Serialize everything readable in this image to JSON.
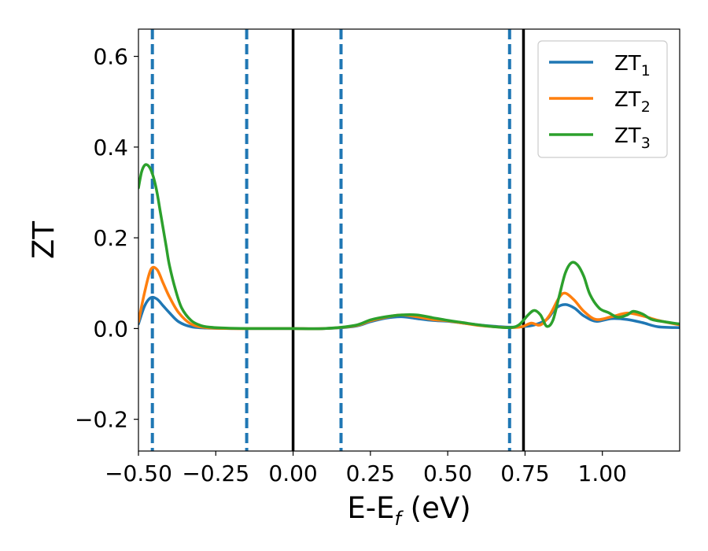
{
  "chart_data": {
    "type": "line",
    "title": "",
    "xlabel": {
      "main": "E-E",
      "sub": "f",
      "unit": " (eV)"
    },
    "ylabel": "ZT",
    "xlim": [
      -0.5,
      1.25
    ],
    "ylim": [
      -0.27,
      0.66
    ],
    "x_ticks": [
      -0.5,
      -0.25,
      0.0,
      0.25,
      0.5,
      0.75,
      1.0
    ],
    "x_tick_labels": [
      "−0.50",
      "−0.25",
      "0.00",
      "0.25",
      "0.50",
      "0.75",
      "1.00"
    ],
    "y_ticks": [
      -0.2,
      0.0,
      0.2,
      0.4,
      0.6
    ],
    "y_tick_labels": [
      "−0.2",
      "0.0",
      "0.2",
      "0.4",
      "0.6"
    ],
    "grid": false,
    "legend_position": "top-right",
    "vlines": [
      {
        "x": -0.455,
        "style": "dashed",
        "color": "#1f77b4"
      },
      {
        "x": -0.15,
        "style": "dashed",
        "color": "#1f77b4"
      },
      {
        "x": 0.0,
        "style": "solid",
        "color": "#000000"
      },
      {
        "x": 0.155,
        "style": "dashed",
        "color": "#1f77b4"
      },
      {
        "x": 0.7,
        "style": "dashed",
        "color": "#1f77b4"
      },
      {
        "x": 0.745,
        "style": "solid",
        "color": "#000000"
      }
    ],
    "series": [
      {
        "name": "ZT",
        "sub": "1",
        "color": "#1f77b4",
        "x": [
          -0.5,
          -0.48,
          -0.46,
          -0.44,
          -0.42,
          -0.4,
          -0.37,
          -0.33,
          -0.28,
          -0.2,
          -0.1,
          0.0,
          0.1,
          0.2,
          0.25,
          0.3,
          0.35,
          0.4,
          0.45,
          0.5,
          0.55,
          0.6,
          0.65,
          0.7,
          0.74,
          0.78,
          0.82,
          0.85,
          0.88,
          0.91,
          0.94,
          0.98,
          1.03,
          1.08,
          1.13,
          1.18,
          1.25
        ],
        "y": [
          0.01,
          0.05,
          0.068,
          0.065,
          0.05,
          0.035,
          0.015,
          0.004,
          0.001,
          0.0,
          0.0,
          0.0,
          0.0,
          0.005,
          0.015,
          0.023,
          0.026,
          0.022,
          0.018,
          0.016,
          0.012,
          0.008,
          0.005,
          0.003,
          0.004,
          0.008,
          0.02,
          0.045,
          0.053,
          0.045,
          0.028,
          0.016,
          0.022,
          0.02,
          0.013,
          0.004,
          0.002
        ]
      },
      {
        "name": "ZT",
        "sub": "2",
        "color": "#ff7f0e",
        "x": [
          -0.5,
          -0.48,
          -0.46,
          -0.44,
          -0.42,
          -0.4,
          -0.37,
          -0.33,
          -0.28,
          -0.2,
          -0.1,
          0.0,
          0.1,
          0.2,
          0.25,
          0.3,
          0.35,
          0.4,
          0.45,
          0.5,
          0.55,
          0.6,
          0.65,
          0.7,
          0.74,
          0.77,
          0.8,
          0.83,
          0.86,
          0.88,
          0.91,
          0.94,
          0.98,
          1.03,
          1.08,
          1.13,
          1.18,
          1.25
        ],
        "y": [
          0.015,
          0.08,
          0.13,
          0.13,
          0.1,
          0.07,
          0.035,
          0.01,
          0.002,
          0.0,
          0.0,
          0.0,
          0.0,
          0.006,
          0.017,
          0.025,
          0.03,
          0.026,
          0.02,
          0.017,
          0.012,
          0.007,
          0.004,
          0.002,
          0.004,
          0.012,
          0.008,
          0.03,
          0.068,
          0.078,
          0.062,
          0.038,
          0.02,
          0.026,
          0.034,
          0.028,
          0.018,
          0.008
        ]
      },
      {
        "name": "ZT",
        "sub": "3",
        "color": "#2ca02c",
        "x": [
          -0.5,
          -0.49,
          -0.48,
          -0.47,
          -0.46,
          -0.45,
          -0.44,
          -0.43,
          -0.42,
          -0.41,
          -0.4,
          -0.38,
          -0.36,
          -0.33,
          -0.3,
          -0.27,
          -0.22,
          -0.15,
          -0.05,
          0.0,
          0.1,
          0.2,
          0.25,
          0.3,
          0.35,
          0.4,
          0.45,
          0.5,
          0.55,
          0.6,
          0.65,
          0.7,
          0.73,
          0.76,
          0.78,
          0.8,
          0.82,
          0.84,
          0.86,
          0.88,
          0.9,
          0.92,
          0.94,
          0.96,
          0.99,
          1.02,
          1.05,
          1.08,
          1.1,
          1.13,
          1.16,
          1.2,
          1.25
        ],
        "y": [
          0.31,
          0.345,
          0.36,
          0.36,
          0.35,
          0.33,
          0.3,
          0.26,
          0.22,
          0.18,
          0.14,
          0.085,
          0.045,
          0.018,
          0.007,
          0.003,
          0.001,
          0.0,
          0.0,
          0.0,
          0.0,
          0.007,
          0.019,
          0.026,
          0.03,
          0.03,
          0.024,
          0.018,
          0.013,
          0.008,
          0.004,
          0.002,
          0.008,
          0.03,
          0.04,
          0.03,
          0.005,
          0.018,
          0.07,
          0.122,
          0.145,
          0.14,
          0.115,
          0.075,
          0.045,
          0.035,
          0.025,
          0.03,
          0.038,
          0.032,
          0.02,
          0.015,
          0.01
        ]
      }
    ]
  }
}
